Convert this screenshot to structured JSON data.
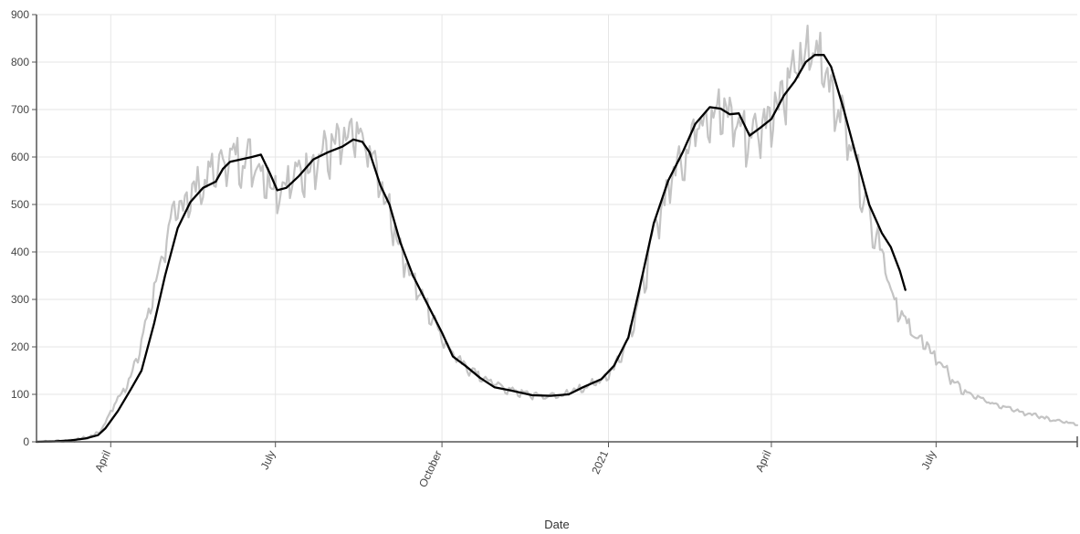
{
  "chart_data": {
    "type": "line",
    "title": "",
    "xlabel": "Date",
    "ylabel": "",
    "ylim": [
      0,
      900
    ],
    "xlim": [
      "2020-02-20",
      "2021-09-17"
    ],
    "grid": true,
    "yticks": [
      0,
      100,
      200,
      300,
      400,
      500,
      600,
      700,
      800,
      900
    ],
    "xticks": [
      {
        "date": "2020-04-01",
        "label": "April"
      },
      {
        "date": "2020-07-01",
        "label": "July"
      },
      {
        "date": "2020-10-01",
        "label": "October"
      },
      {
        "date": "2021-01-01",
        "label": "2021"
      },
      {
        "date": "2021-04-01",
        "label": "April"
      },
      {
        "date": "2021-07-01",
        "label": "July"
      }
    ],
    "series": [
      {
        "color": "#c4c4c4",
        "style": "daily, noisy",
        "points": [
          [
            "2020-02-20",
            0
          ],
          [
            "2020-03-01",
            1
          ],
          [
            "2020-03-10",
            3
          ],
          [
            "2020-03-18",
            8
          ],
          [
            "2020-03-25",
            18
          ],
          [
            "2020-03-29",
            40
          ],
          [
            "2020-04-03",
            80
          ],
          [
            "2020-04-10",
            118
          ],
          [
            "2020-04-18",
            210
          ],
          [
            "2020-04-25",
            320
          ],
          [
            "2020-05-01",
            420
          ],
          [
            "2020-05-08",
            490
          ],
          [
            "2020-05-15",
            525
          ],
          [
            "2020-05-22",
            545
          ],
          [
            "2020-05-29",
            575
          ],
          [
            "2020-06-05",
            600
          ],
          [
            "2020-06-12",
            600
          ],
          [
            "2020-06-19",
            595
          ],
          [
            "2020-06-26",
            560
          ],
          [
            "2020-07-01",
            535
          ],
          [
            "2020-07-08",
            548
          ],
          [
            "2020-07-15",
            568
          ],
          [
            "2020-07-22",
            595
          ],
          [
            "2020-07-29",
            612
          ],
          [
            "2020-08-05",
            625
          ],
          [
            "2020-08-12",
            640
          ],
          [
            "2020-08-19",
            630
          ],
          [
            "2020-08-23",
            600
          ],
          [
            "2020-08-29",
            530
          ],
          [
            "2020-09-03",
            470
          ],
          [
            "2020-09-10",
            390
          ],
          [
            "2020-09-18",
            320
          ],
          [
            "2020-09-26",
            260
          ],
          [
            "2020-10-03",
            210
          ],
          [
            "2020-10-10",
            175
          ],
          [
            "2020-10-18",
            150
          ],
          [
            "2020-10-28",
            125
          ],
          [
            "2020-11-07",
            110
          ],
          [
            "2020-11-18",
            100
          ],
          [
            "2020-11-28",
            96
          ],
          [
            "2020-12-08",
            100
          ],
          [
            "2020-12-18",
            115
          ],
          [
            "2020-12-28",
            130
          ],
          [
            "2021-01-04",
            155
          ],
          [
            "2021-01-12",
            220
          ],
          [
            "2021-01-20",
            330
          ],
          [
            "2021-01-28",
            470
          ],
          [
            "2021-02-05",
            560
          ],
          [
            "2021-02-13",
            620
          ],
          [
            "2021-02-20",
            680
          ],
          [
            "2021-02-27",
            705
          ],
          [
            "2021-03-06",
            690
          ],
          [
            "2021-03-12",
            680
          ],
          [
            "2021-03-18",
            645
          ],
          [
            "2021-03-25",
            660
          ],
          [
            "2021-04-01",
            700
          ],
          [
            "2021-04-08",
            745
          ],
          [
            "2021-04-15",
            790
          ],
          [
            "2021-04-22",
            820
          ],
          [
            "2021-04-28",
            810
          ],
          [
            "2021-05-04",
            750
          ],
          [
            "2021-05-11",
            680
          ],
          [
            "2021-05-18",
            580
          ],
          [
            "2021-05-25",
            480
          ],
          [
            "2021-06-01",
            410
          ],
          [
            "2021-06-07",
            310
          ],
          [
            "2021-06-14",
            250
          ],
          [
            "2021-06-21",
            220
          ],
          [
            "2021-06-28",
            190
          ],
          [
            "2021-07-05",
            160
          ],
          [
            "2021-07-12",
            120
          ],
          [
            "2021-07-19",
            100
          ],
          [
            "2021-07-26",
            90
          ],
          [
            "2021-08-02",
            80
          ],
          [
            "2021-08-09",
            75
          ],
          [
            "2021-08-16",
            65
          ],
          [
            "2021-08-23",
            58
          ],
          [
            "2021-08-30",
            50
          ],
          [
            "2021-09-06",
            45
          ],
          [
            "2021-09-12",
            40
          ],
          [
            "2021-09-17",
            35
          ]
        ]
      },
      {
        "color": "#000000",
        "style": "7-day average",
        "points": [
          [
            "2020-02-20",
            0
          ],
          [
            "2020-03-01",
            1
          ],
          [
            "2020-03-10",
            3
          ],
          [
            "2020-03-18",
            7
          ],
          [
            "2020-03-25",
            14
          ],
          [
            "2020-03-29",
            28
          ],
          [
            "2020-04-05",
            65
          ],
          [
            "2020-04-12",
            110
          ],
          [
            "2020-04-18",
            150
          ],
          [
            "2020-04-25",
            250
          ],
          [
            "2020-05-01",
            350
          ],
          [
            "2020-05-08",
            450
          ],
          [
            "2020-05-15",
            505
          ],
          [
            "2020-05-22",
            535
          ],
          [
            "2020-05-29",
            548
          ],
          [
            "2020-06-02",
            575
          ],
          [
            "2020-06-06",
            590
          ],
          [
            "2020-06-12",
            595
          ],
          [
            "2020-06-18",
            600
          ],
          [
            "2020-06-23",
            605
          ],
          [
            "2020-06-28",
            565
          ],
          [
            "2020-07-02",
            530
          ],
          [
            "2020-07-07",
            535
          ],
          [
            "2020-07-14",
            560
          ],
          [
            "2020-07-22",
            595
          ],
          [
            "2020-07-30",
            610
          ],
          [
            "2020-08-07",
            622
          ],
          [
            "2020-08-13",
            637
          ],
          [
            "2020-08-18",
            632
          ],
          [
            "2020-08-22",
            610
          ],
          [
            "2020-08-28",
            540
          ],
          [
            "2020-09-02",
            500
          ],
          [
            "2020-09-08",
            420
          ],
          [
            "2020-09-15",
            350
          ],
          [
            "2020-09-23",
            290
          ],
          [
            "2020-10-01",
            230
          ],
          [
            "2020-10-07",
            180
          ],
          [
            "2020-10-14",
            160
          ],
          [
            "2020-10-22",
            135
          ],
          [
            "2020-10-30",
            115
          ],
          [
            "2020-11-08",
            108
          ],
          [
            "2020-11-20",
            98
          ],
          [
            "2020-11-30",
            97
          ],
          [
            "2020-12-10",
            100
          ],
          [
            "2020-12-18",
            115
          ],
          [
            "2020-12-28",
            132
          ],
          [
            "2021-01-04",
            160
          ],
          [
            "2021-01-12",
            220
          ],
          [
            "2021-01-18",
            320
          ],
          [
            "2021-01-26",
            460
          ],
          [
            "2021-02-03",
            550
          ],
          [
            "2021-02-11",
            610
          ],
          [
            "2021-02-18",
            670
          ],
          [
            "2021-02-26",
            705
          ],
          [
            "2021-03-04",
            702
          ],
          [
            "2021-03-09",
            690
          ],
          [
            "2021-03-14",
            692
          ],
          [
            "2021-03-20",
            645
          ],
          [
            "2021-03-26",
            662
          ],
          [
            "2021-04-01",
            680
          ],
          [
            "2021-04-08",
            730
          ],
          [
            "2021-04-14",
            760
          ],
          [
            "2021-04-20",
            800
          ],
          [
            "2021-04-25",
            815
          ],
          [
            "2021-04-30",
            815
          ],
          [
            "2021-05-04",
            790
          ],
          [
            "2021-05-11",
            700
          ],
          [
            "2021-05-18",
            600
          ],
          [
            "2021-05-25",
            500
          ],
          [
            "2021-06-01",
            440
          ],
          [
            "2021-06-06",
            410
          ],
          [
            "2021-06-11",
            360
          ],
          [
            "2021-06-14",
            320
          ]
        ]
      }
    ]
  }
}
